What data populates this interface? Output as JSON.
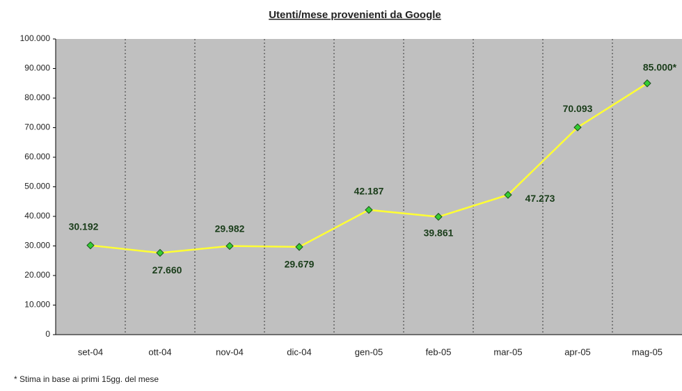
{
  "chart_data": {
    "type": "line",
    "title": "Utenti/mese provenienti da Google",
    "categories": [
      "set-04",
      "ott-04",
      "nov-04",
      "dic-04",
      "gen-05",
      "feb-05",
      "mar-05",
      "apr-05",
      "mag-05"
    ],
    "values": [
      30192,
      27660,
      29982,
      29679,
      42187,
      39861,
      47273,
      70093,
      85000
    ],
    "value_labels": [
      "30.192",
      "27.660",
      "29.982",
      "29.679",
      "42.187",
      "39.861",
      "47.273",
      "70.093",
      "85.000*"
    ],
    "color": "#ffff33",
    "marker_color": "#33cc33",
    "ylim": [
      0,
      100000
    ],
    "yticks": [
      0,
      {
        "value": 10000,
        "label": "10.000"
      },
      {
        "value": 20000,
        "label": "20.000"
      },
      {
        "value": 30000,
        "label": "30.000"
      },
      {
        "value": 40000,
        "label": "40.000"
      },
      {
        "value": 50000,
        "label": "50.000"
      },
      {
        "value": 60000,
        "label": "60.000"
      },
      {
        "value": 70000,
        "label": "70.000"
      },
      {
        "value": 80000,
        "label": "80.000"
      },
      {
        "value": 90000,
        "label": "90.000"
      },
      {
        "value": 100000,
        "label": "100.000"
      }
    ],
    "annotation": "* Stima in base ai primi 15gg. del mese"
  }
}
